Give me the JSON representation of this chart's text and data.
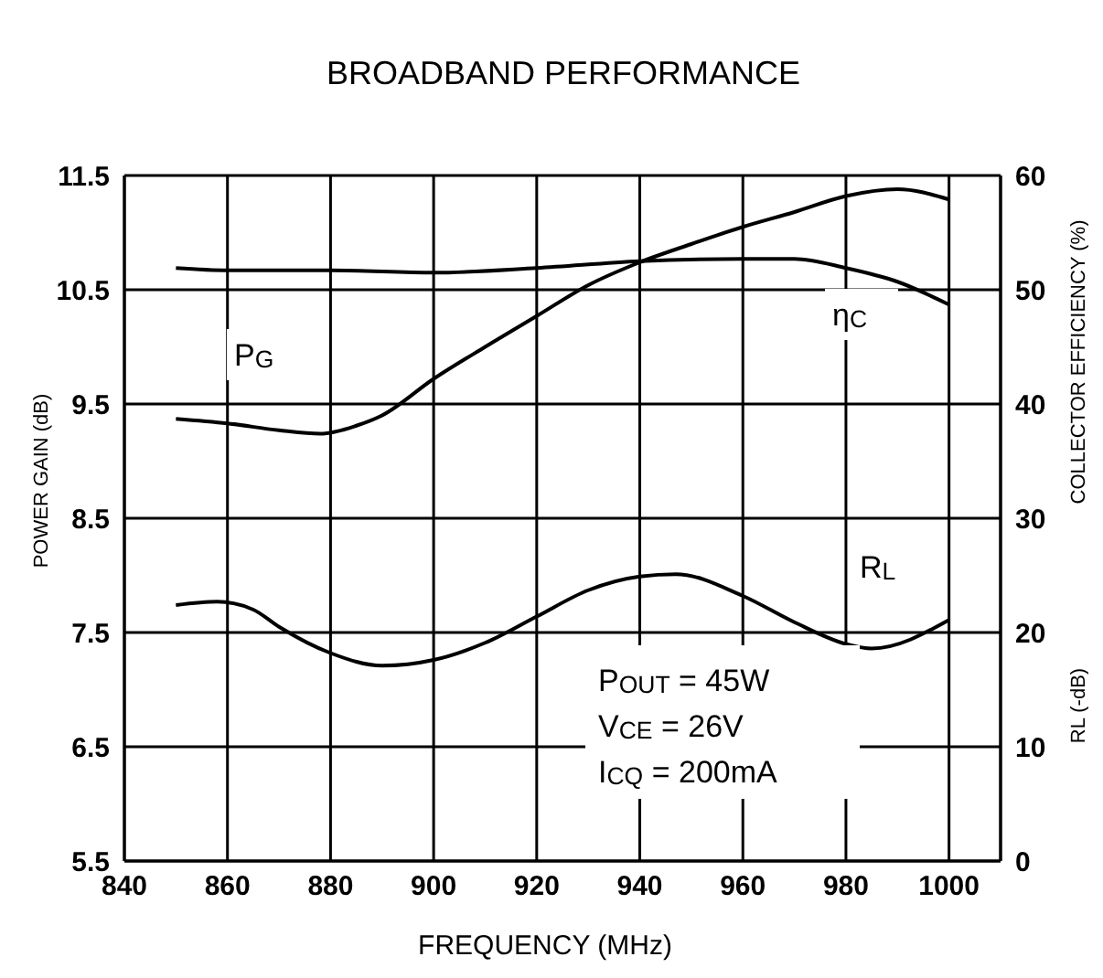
{
  "chart_data": {
    "type": "line",
    "title": "BROADBAND PERFORMANCE",
    "xlabel": "FREQUENCY (MHz)",
    "ylabel": "POWER GAIN (dB)",
    "y2label": "COLLECTOR EFFICIENCY (%)",
    "y3label": "RL (-dB)",
    "xlim": [
      840,
      1010
    ],
    "xticks": [
      840,
      860,
      880,
      900,
      920,
      940,
      960,
      980,
      1000
    ],
    "ylim": [
      5.5,
      11.5
    ],
    "yticks": [
      5.5,
      6.5,
      7.5,
      8.5,
      9.5,
      10.5,
      11.5
    ],
    "y2lim": [
      0,
      60
    ],
    "y2ticks": [
      0,
      10,
      20,
      30,
      40,
      50,
      60
    ],
    "grid": true,
    "marker": "none",
    "line_style": "solid",
    "annotations": [
      "P$_{OUT}$ = 45W",
      "V$_{CE}$ = 26V",
      "I$_{CQ}$ = 200mA"
    ],
    "series": [
      {
        "name": "P$_{G}$",
        "color": "#000000",
        "x": [
          850,
          860,
          870,
          878,
          885,
          890,
          900,
          910,
          920,
          930,
          940,
          950,
          960,
          970,
          980,
          990,
          1000
        ],
        "values": [
          9.37,
          9.33,
          9.27,
          9.24,
          9.31,
          9.4,
          9.72,
          10.0,
          10.27,
          10.54,
          10.74,
          10.9,
          11.05,
          11.18,
          11.32,
          11.38,
          11.29
        ]
      },
      {
        "name": "η$_{C}$",
        "color": "#000000",
        "axis": "y2",
        "x": [
          850,
          860,
          880,
          900,
          920,
          940,
          960,
          970,
          980,
          990,
          1000
        ],
        "values": [
          51.9,
          51.7,
          51.7,
          51.5,
          51.9,
          52.5,
          52.7,
          52.7,
          51.9,
          50.7,
          48.7
        ]
      },
      {
        "name": "R$_{L}$",
        "color": "#000000",
        "axis": "y2",
        "x": [
          850,
          858,
          865,
          870,
          880,
          890,
          900,
          910,
          920,
          930,
          940,
          947,
          960,
          970,
          980,
          985,
          1000
        ],
        "values": [
          22.4,
          22.7,
          22.0,
          20.5,
          18.2,
          17.1,
          17.6,
          19.1,
          21.4,
          23.7,
          24.9,
          25.1,
          23.2,
          20.9,
          19.0,
          18.6,
          21.1
        ]
      }
    ]
  }
}
